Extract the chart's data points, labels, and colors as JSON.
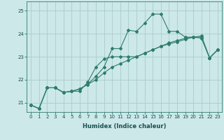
{
  "xlabel": "Humidex (Indice chaleur)",
  "bg_color": "#cce8e8",
  "line_color": "#2e7d6e",
  "grid_color": "#aacccc",
  "xlim": [
    -0.5,
    23.5
  ],
  "ylim": [
    20.6,
    25.4
  ],
  "yticks": [
    21,
    22,
    23,
    24,
    25
  ],
  "xticks": [
    0,
    1,
    2,
    3,
    4,
    5,
    6,
    7,
    8,
    9,
    10,
    11,
    12,
    13,
    14,
    15,
    16,
    17,
    18,
    19,
    20,
    21,
    22,
    23
  ],
  "line1_x": [
    0,
    1,
    2,
    3,
    4,
    5,
    6,
    7,
    8,
    9,
    10,
    11,
    12,
    13,
    14,
    15,
    16,
    17,
    18,
    19,
    20,
    21,
    22,
    23
  ],
  "line1_y": [
    20.9,
    20.75,
    21.65,
    21.65,
    21.45,
    21.5,
    21.6,
    21.8,
    22.15,
    22.55,
    23.35,
    23.35,
    24.15,
    24.1,
    24.45,
    24.85,
    24.85,
    24.1,
    24.1,
    23.85,
    23.85,
    23.8,
    22.95,
    23.3
  ],
  "line2_x": [
    0,
    1,
    2,
    3,
    4,
    5,
    6,
    7,
    8,
    9,
    10,
    11,
    12,
    13,
    14,
    15,
    16,
    17,
    18,
    19,
    20,
    21,
    22,
    23
  ],
  "line2_y": [
    20.9,
    20.75,
    21.65,
    21.65,
    21.45,
    21.5,
    21.5,
    21.9,
    22.55,
    22.9,
    23.0,
    23.0,
    23.0,
    23.0,
    23.15,
    23.3,
    23.45,
    23.6,
    23.7,
    23.8,
    23.85,
    23.85,
    22.95,
    23.3
  ],
  "line3_x": [
    0,
    1,
    2,
    3,
    4,
    5,
    6,
    7,
    8,
    9,
    10,
    11,
    12,
    13,
    14,
    15,
    16,
    17,
    18,
    19,
    20,
    21,
    22,
    23
  ],
  "line3_y": [
    20.9,
    20.75,
    21.65,
    21.65,
    21.45,
    21.5,
    21.6,
    21.8,
    22.0,
    22.3,
    22.55,
    22.7,
    22.85,
    23.0,
    23.15,
    23.3,
    23.45,
    23.55,
    23.65,
    23.75,
    23.85,
    23.9,
    22.95,
    23.3
  ],
  "xlabel_fontsize": 6.0,
  "tick_fontsize": 5.0,
  "marker_size": 2.0,
  "line_width": 0.8
}
